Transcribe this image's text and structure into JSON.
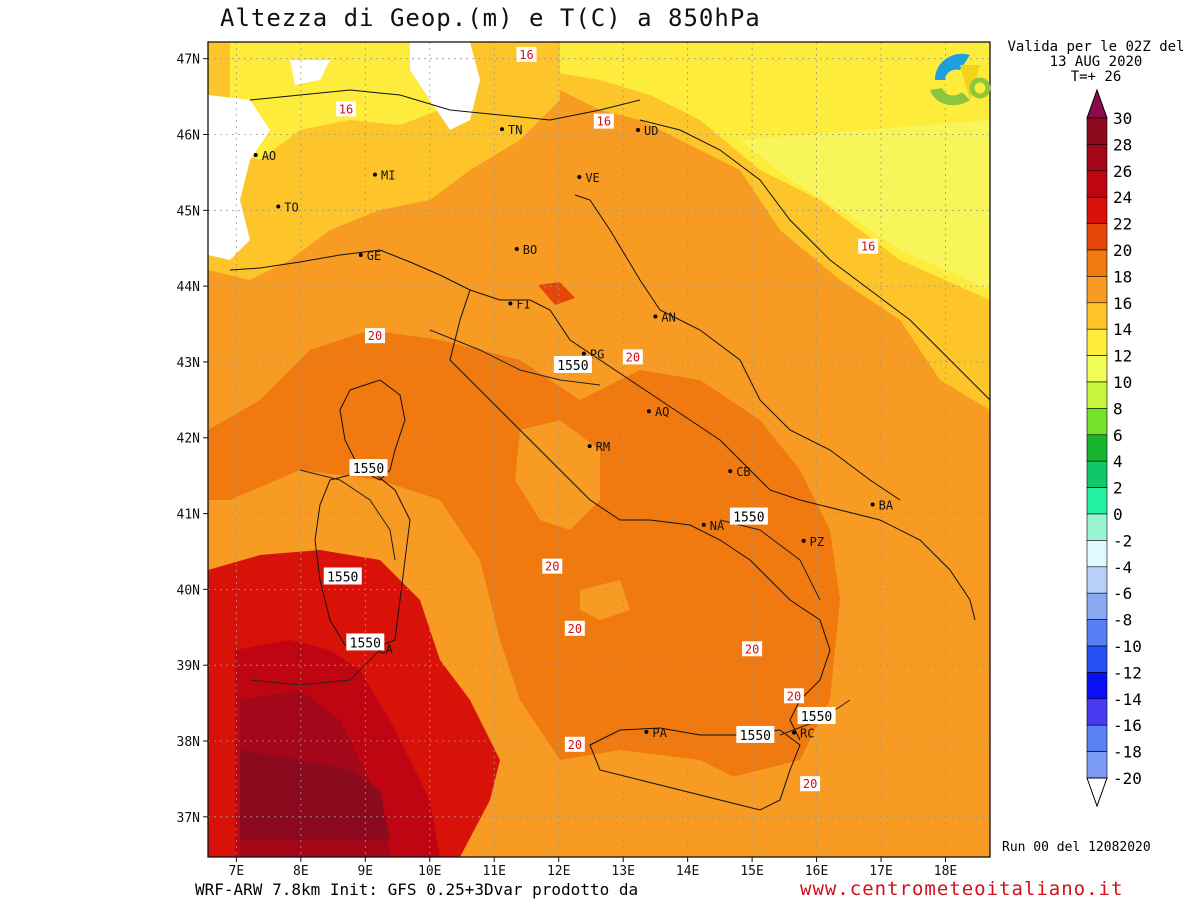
{
  "title": "Altezza di Geop.(m) e T(C) a 850hPa",
  "valid_line1": "Valida per le 02Z del",
  "valid_line2": "13 AUG 2020",
  "valid_line3": "T=+ 26",
  "run_label": "Run 00 del 12082020",
  "footer_left": "WRF-ARW 7.8km Init: GFS 0.25+3Dvar prodotto da",
  "footer_site": "www.centrometeoitaliano.it",
  "logo": "centrometeoitaliano-logo",
  "lat_labels": [
    "47N",
    "46N",
    "45N",
    "44N",
    "43N",
    "42N",
    "41N",
    "40N",
    "39N",
    "38N",
    "37N"
  ],
  "lon_labels": [
    "7E",
    "8E",
    "9E",
    "10E",
    "11E",
    "12E",
    "13E",
    "14E",
    "15E",
    "16E",
    "17E",
    "18E"
  ],
  "cities": [
    {
      "name": "AO",
      "lon": 7.3,
      "lat": 45.73
    },
    {
      "name": "TO",
      "lon": 7.65,
      "lat": 45.05
    },
    {
      "name": "MI",
      "lon": 9.15,
      "lat": 45.47
    },
    {
      "name": "TN",
      "lon": 11.12,
      "lat": 46.07
    },
    {
      "name": "UD",
      "lon": 13.23,
      "lat": 46.06
    },
    {
      "name": "VE",
      "lon": 12.32,
      "lat": 45.44
    },
    {
      "name": "GE",
      "lon": 8.93,
      "lat": 44.41
    },
    {
      "name": "BO",
      "lon": 11.35,
      "lat": 44.49
    },
    {
      "name": "FI",
      "lon": 11.25,
      "lat": 43.77
    },
    {
      "name": "AN",
      "lon": 13.5,
      "lat": 43.6
    },
    {
      "name": "PG",
      "lon": 12.39,
      "lat": 43.11
    },
    {
      "name": "AQ",
      "lon": 13.4,
      "lat": 42.35
    },
    {
      "name": "RM",
      "lon": 12.48,
      "lat": 41.89
    },
    {
      "name": "CB",
      "lon": 14.66,
      "lat": 41.56
    },
    {
      "name": "NA",
      "lon": 14.25,
      "lat": 40.85
    },
    {
      "name": "BA",
      "lon": 16.87,
      "lat": 41.12
    },
    {
      "name": "PZ",
      "lon": 15.8,
      "lat": 40.64
    },
    {
      "name": "CA",
      "lon": 9.11,
      "lat": 39.22
    },
    {
      "name": "PA",
      "lon": 13.36,
      "lat": 38.12
    },
    {
      "name": "RC",
      "lon": 15.65,
      "lat": 38.11
    }
  ],
  "temp_labels": [
    {
      "text": "16",
      "lon": 11.5,
      "lat": 47.05
    },
    {
      "text": "16",
      "lon": 8.7,
      "lat": 46.33
    },
    {
      "text": "16",
      "lon": 12.7,
      "lat": 46.17
    },
    {
      "text": "16",
      "lon": 16.8,
      "lat": 44.52
    },
    {
      "text": "20",
      "lon": 9.15,
      "lat": 43.34
    },
    {
      "text": "20",
      "lon": 13.15,
      "lat": 43.06
    },
    {
      "text": "20",
      "lon": 11.9,
      "lat": 40.3
    },
    {
      "text": "20",
      "lon": 12.25,
      "lat": 39.48
    },
    {
      "text": "20",
      "lon": 15.0,
      "lat": 39.21
    },
    {
      "text": "20",
      "lon": 15.65,
      "lat": 38.59
    },
    {
      "text": "20",
      "lon": 12.25,
      "lat": 37.95
    },
    {
      "text": "20",
      "lon": 15.9,
      "lat": 37.43
    }
  ],
  "geop_labels": [
    {
      "text": "1550",
      "lon": 12.22,
      "lat": 42.96
    },
    {
      "text": "1550",
      "lon": 9.05,
      "lat": 41.6
    },
    {
      "text": "1550",
      "lon": 8.65,
      "lat": 40.17
    },
    {
      "text": "1550",
      "lon": 9.0,
      "lat": 39.3
    },
    {
      "text": "1550",
      "lon": 14.95,
      "lat": 40.96
    },
    {
      "text": "1550",
      "lon": 16.0,
      "lat": 38.33
    },
    {
      "text": "1550",
      "lon": 15.05,
      "lat": 38.08
    }
  ],
  "colorbar": {
    "labels": [
      "30",
      "28",
      "26",
      "24",
      "22",
      "20",
      "18",
      "16",
      "14",
      "12",
      "10",
      "8",
      "6",
      "4",
      "2",
      "0",
      "-2",
      "-4",
      "-6",
      "-8",
      "-10",
      "-12",
      "-14",
      "-16",
      "-18",
      "-20"
    ],
    "colors": [
      "#8b0a1e",
      "#a4061a",
      "#c00512",
      "#d81208",
      "#e6460a",
      "#f07a10",
      "#f79b22",
      "#fdc52a",
      "#fdec3c",
      "#f2fd58",
      "#c8f540",
      "#74e228",
      "#18b430",
      "#10c86a",
      "#22f2a0",
      "#9af5d4",
      "#e0f8ff",
      "#b8d0f8",
      "#8aa8f2",
      "#5a7ef4",
      "#2450f4",
      "#0a10f4",
      "#4a3af2",
      "#5a82f4",
      "#7a9af4",
      "#a8a8ff",
      "#a0a0a0"
    ],
    "top_arrow_color": "#8b0a4a",
    "bottom_arrow_color": "#ffffff"
  }
}
